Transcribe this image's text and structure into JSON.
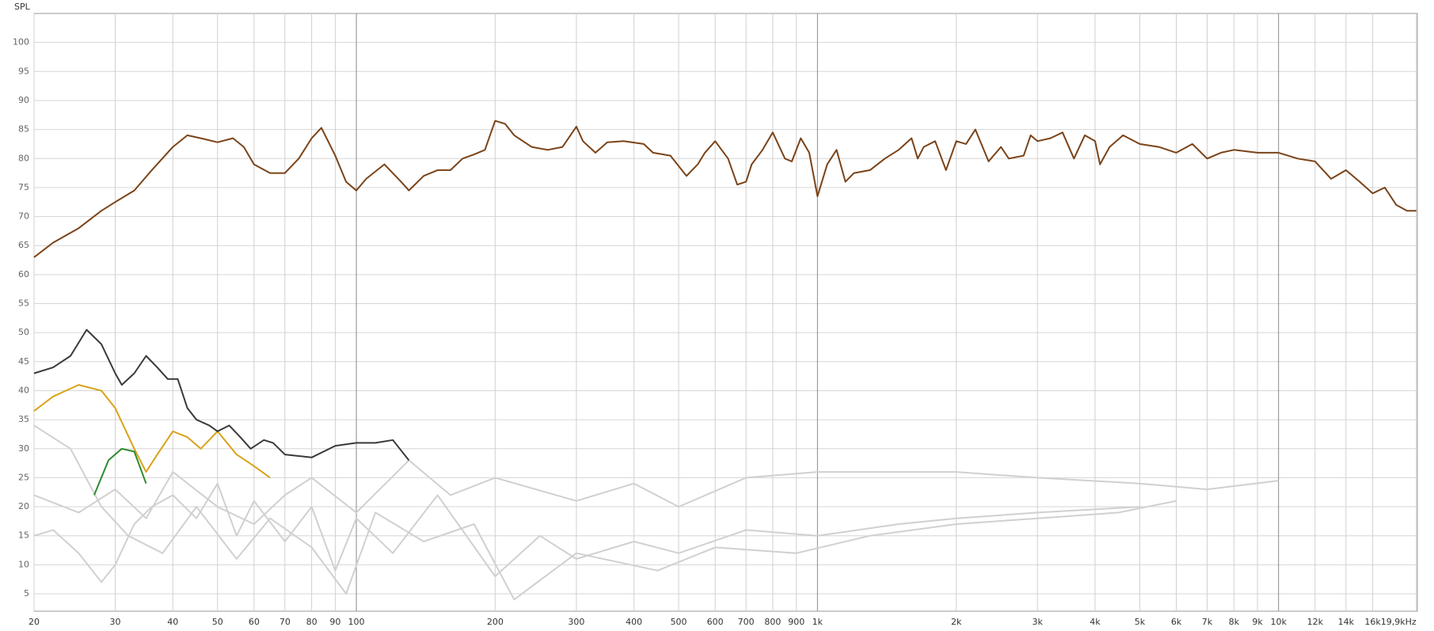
{
  "chart_data": {
    "type": "line",
    "y_label": "SPL",
    "x_scale": "log",
    "grid": true,
    "xlim": [
      20,
      20000
    ],
    "ylim": [
      2,
      105
    ],
    "xticks": [
      20,
      30,
      40,
      50,
      60,
      70,
      80,
      90,
      100,
      200,
      300,
      400,
      500,
      600,
      700,
      800,
      900,
      {
        "value": 1000,
        "label": "1k"
      },
      {
        "value": 2000,
        "label": "2k"
      },
      {
        "value": 3000,
        "label": "3k"
      },
      {
        "value": 4000,
        "label": "4k"
      },
      {
        "value": 5000,
        "label": "5k"
      },
      {
        "value": 6000,
        "label": "6k"
      },
      {
        "value": 7000,
        "label": "7k"
      },
      {
        "value": 8000,
        "label": "8k"
      },
      {
        "value": 9000,
        "label": "9k"
      },
      {
        "value": 10000,
        "label": "10k"
      },
      {
        "value": 12000,
        "label": "12k"
      },
      {
        "value": 14000,
        "label": "14k"
      },
      {
        "value": 16000,
        "label": "16k"
      },
      {
        "value": 19900,
        "label": "19,9kHz"
      }
    ],
    "yticks": [
      5,
      10,
      15,
      20,
      25,
      30,
      35,
      40,
      45,
      50,
      55,
      60,
      65,
      70,
      75,
      80,
      85,
      90,
      95,
      100
    ],
    "series": [
      {
        "color": "#d0d0d0",
        "x": [
          20,
          22,
          25,
          28,
          30,
          33,
          36,
          40,
          45,
          50,
          55,
          60,
          70,
          80,
          90,
          100,
          120,
          150,
          200,
          250,
          300,
          400,
          500,
          700,
          1000,
          1500,
          2000,
          3000,
          5000
        ],
        "values": [
          15,
          16,
          12,
          7,
          10,
          17,
          20,
          22,
          18,
          24,
          15,
          21,
          14,
          20,
          9,
          18,
          12,
          22,
          8,
          15,
          11,
          14,
          12,
          16,
          15,
          17,
          18,
          19,
          20
        ]
      },
      {
        "color": "#d0d0d0",
        "x": [
          20,
          25,
          30,
          35,
          40,
          50,
          60,
          70,
          80,
          100,
          130,
          160,
          200,
          300,
          400,
          500,
          700,
          1000,
          2000,
          3000,
          5000,
          7000,
          10000
        ],
        "values": [
          22,
          19,
          23,
          18,
          26,
          20,
          17,
          22,
          25,
          19,
          28,
          22,
          25,
          21,
          24,
          20,
          25,
          26,
          26,
          25,
          24,
          23,
          24.5
        ]
      },
      {
        "color": "#d0d0d0",
        "x": [
          20,
          24,
          28,
          32,
          38,
          45,
          55,
          65,
          80,
          95,
          110,
          140,
          180,
          220,
          300,
          450,
          600,
          900,
          1300,
          2000,
          3000,
          4500,
          6000
        ],
        "values": [
          34,
          30,
          20,
          15,
          12,
          20,
          11,
          18,
          13,
          5,
          19,
          14,
          17,
          4,
          12,
          9,
          13,
          12,
          15,
          17,
          18,
          19,
          21
        ]
      },
      {
        "color": "#d9a21b",
        "x": [
          20,
          22,
          25,
          28,
          30,
          33,
          35,
          37,
          40,
          43,
          46,
          50,
          55,
          60,
          65
        ],
        "values": [
          36.5,
          39,
          41,
          40,
          37,
          30,
          26,
          29,
          33,
          32,
          30,
          33,
          29,
          27,
          25
        ]
      },
      {
        "color": "#2e8b2e",
        "x": [
          27,
          29,
          31,
          33,
          35
        ],
        "values": [
          22,
          28,
          30,
          29.5,
          24
        ]
      },
      {
        "color": "#3a3a3a",
        "x": [
          20,
          22,
          24,
          26,
          28,
          30,
          31,
          33,
          35,
          37,
          39,
          41,
          43,
          45,
          48,
          50,
          53,
          56,
          59,
          63,
          66,
          70,
          80,
          90,
          100,
          110,
          120,
          130
        ],
        "values": [
          43,
          44,
          46,
          50.5,
          48,
          43,
          41,
          43,
          46,
          44,
          42,
          42,
          37,
          35,
          34,
          33,
          34,
          32,
          30,
          31.5,
          31,
          29,
          28.5,
          30.5,
          31,
          31,
          31.5,
          28
        ]
      },
      {
        "color": "#7a4318",
        "x": [
          20,
          22,
          25,
          28,
          30,
          33,
          36,
          40,
          43,
          46,
          50,
          54,
          57,
          60,
          65,
          70,
          75,
          80,
          84,
          90,
          95,
          100,
          105,
          115,
          125,
          130,
          140,
          150,
          160,
          170,
          180,
          190,
          200,
          210,
          220,
          240,
          260,
          280,
          300,
          310,
          330,
          350,
          380,
          420,
          440,
          480,
          520,
          550,
          570,
          600,
          640,
          670,
          700,
          720,
          760,
          800,
          850,
          880,
          920,
          960,
          1000,
          1050,
          1100,
          1150,
          1200,
          1300,
          1400,
          1500,
          1600,
          1650,
          1700,
          1800,
          1900,
          2000,
          2100,
          2200,
          2350,
          2500,
          2600,
          2800,
          2900,
          3000,
          3200,
          3400,
          3600,
          3800,
          4000,
          4100,
          4300,
          4600,
          5000,
          5500,
          6000,
          6500,
          7000,
          7500,
          8000,
          9000,
          10000,
          11000,
          12000,
          13000,
          14000,
          15000,
          16000,
          17000,
          18000,
          19000,
          19900
        ],
        "values": [
          63,
          65.5,
          68,
          71,
          72.5,
          74.5,
          78,
          82,
          84,
          83.5,
          82.8,
          83.5,
          82,
          79,
          77.5,
          77.5,
          80,
          83.5,
          85.3,
          80.5,
          76,
          74.5,
          76.5,
          79,
          76,
          74.5,
          77,
          78,
          78,
          80,
          80.7,
          81.5,
          86.5,
          86,
          84,
          82,
          81.5,
          82,
          85.5,
          83,
          81,
          82.8,
          83,
          82.5,
          81,
          80.5,
          77,
          79,
          81,
          83,
          80,
          75.5,
          76,
          79,
          81.5,
          84.5,
          80,
          79.5,
          83.5,
          81,
          73.5,
          79,
          81.5,
          76,
          77.5,
          78,
          80,
          81.5,
          83.5,
          80,
          82,
          83,
          78,
          83,
          82.5,
          85,
          79.5,
          82,
          80,
          80.5,
          84,
          83,
          83.5,
          84.5,
          80,
          84,
          83,
          79,
          82,
          84,
          82.5,
          82,
          81,
          82.5,
          80,
          81,
          81.5,
          81,
          81,
          80,
          79.5,
          76.5,
          78,
          76,
          74,
          75,
          72,
          71,
          71
        ]
      }
    ]
  }
}
